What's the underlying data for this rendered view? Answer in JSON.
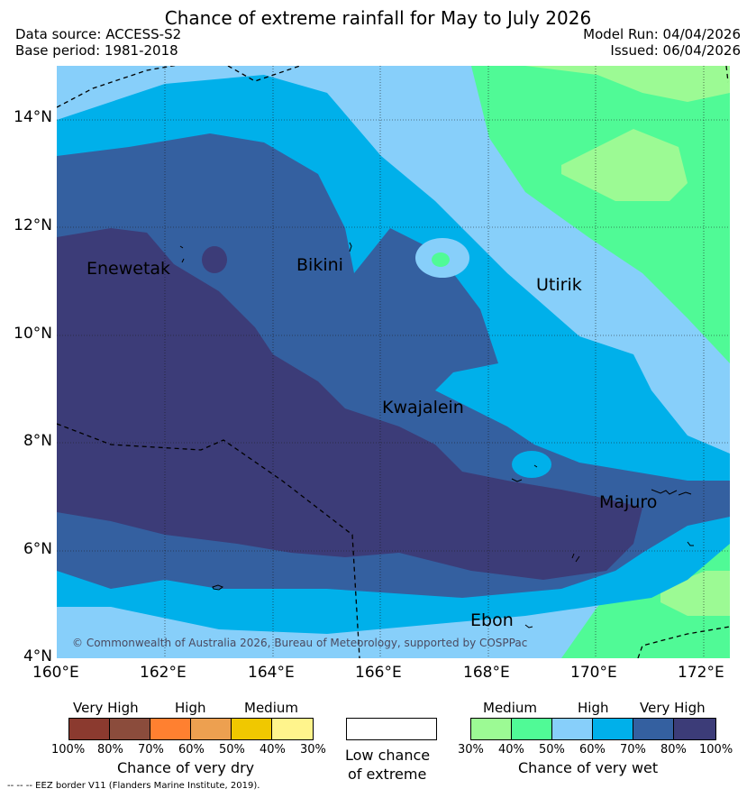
{
  "title": "Chance of extreme rainfall for May to July 2026",
  "header": {
    "data_source": "Data source: ACCESS-S2",
    "base_period": "Base period: 1981-2018",
    "model_run": "Model Run: 04/04/2026",
    "issued": "Issued: 06/04/2026"
  },
  "map": {
    "lat_labels": [
      "14°N",
      "12°N",
      "10°N",
      "8°N",
      "6°N",
      "4°N"
    ],
    "lon_labels": [
      "160°E",
      "162°E",
      "164°E",
      "166°E",
      "168°E",
      "170°E",
      "172°E"
    ],
    "places": [
      {
        "name": "Enewetak",
        "lon": 161.1,
        "lat": 11.3
      },
      {
        "name": "Bikini",
        "lon": 165.3,
        "lat": 11.4
      },
      {
        "name": "Utirik",
        "lon": 169.6,
        "lat": 10.8
      },
      {
        "name": "Kwajalein",
        "lon": 167.4,
        "lat": 8.7
      },
      {
        "name": "Majuro",
        "lon": 171.3,
        "lat": 7.1
      },
      {
        "name": "Ebon",
        "lon": 168.6,
        "lat": 4.5
      }
    ],
    "copyright": "© Commonwealth of Australia 2026, Bureau of Meteorology, supported by COSPPac"
  },
  "legend": {
    "dry": {
      "headers": [
        "Very High",
        "High",
        "Medium"
      ],
      "ticks": [
        "100%",
        "80%",
        "70%",
        "60%",
        "50%",
        "40%",
        "30%"
      ],
      "colors": [
        "#8b3a2f",
        "#8b4c3c",
        "#ff8030",
        "#eda050",
        "#f0c800",
        "#fff48c"
      ],
      "title": "Chance of very dry"
    },
    "neutral": {
      "line1": "Low chance",
      "line2": "of extreme",
      "color": "#ffffff"
    },
    "wet": {
      "headers": [
        "Medium",
        "High",
        "Very High"
      ],
      "ticks": [
        "30%",
        "40%",
        "50%",
        "60%",
        "70%",
        "80%",
        "100%"
      ],
      "colors": [
        "#9cfa94",
        "#50fa96",
        "#87cffa",
        "#00b0ea",
        "#3460a0",
        "#3c3c78"
      ],
      "title": "Chance of very wet"
    }
  },
  "footnote": "--  --  -- EEZ border V11 (Flanders Marine Institute, 2019)."
}
